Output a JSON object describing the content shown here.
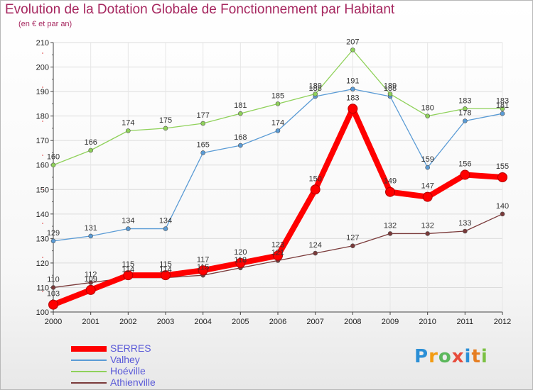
{
  "header": {
    "title": "Evolution de la Dotation Globale de Fonctionnement par Habitant",
    "subtitle": "(en € et par an)"
  },
  "brand": {
    "letters": [
      "P",
      "r",
      "o",
      "x",
      "i",
      "t",
      "i"
    ],
    "colors": [
      "#2b8fd6",
      "#f39c12",
      "#5cb85c",
      "#e74c3c",
      "#2b8fd6",
      "#e67e22",
      "#7bc043"
    ]
  },
  "chart_data": {
    "type": "line",
    "title": "Evolution de la Dotation Globale de Fonctionnement par Habitant",
    "subtitle": "(en € et par an)",
    "xlabel": "",
    "ylabel": "",
    "x": [
      "2000",
      "2001",
      "2002",
      "2003",
      "2004",
      "2005",
      "2006",
      "2007",
      "2008",
      "2009",
      "2010",
      "2011",
      "2012"
    ],
    "ylim": [
      100,
      210
    ],
    "yticks": [
      100,
      110,
      120,
      130,
      140,
      150,
      160,
      170,
      180,
      190,
      200,
      210
    ],
    "grid": true,
    "legend_position": "bottom-left",
    "series": [
      {
        "name": "SERRES",
        "color": "#ff0000",
        "emphasis": true,
        "values": [
          103,
          109,
          115,
          115,
          117,
          120,
          123,
          150,
          183,
          149,
          147,
          156,
          155
        ],
        "labels": [
          "103",
          "109",
          "115",
          "115",
          "117",
          "120",
          "123",
          "150",
          "183",
          "149",
          "147",
          "156",
          "155"
        ]
      },
      {
        "name": "Valhey",
        "color": "#5a9bd5",
        "values": [
          129,
          131,
          134,
          134,
          165,
          168,
          174,
          188,
          191,
          188,
          159,
          178,
          181
        ],
        "labels": [
          "129",
          "131",
          "134",
          "134",
          "165",
          "168",
          "174",
          "188",
          "191",
          "188",
          "159",
          "178",
          "181"
        ]
      },
      {
        "name": "Hoéville",
        "color": "#8fd15a",
        "values": [
          160,
          166,
          174,
          175,
          177,
          181,
          185,
          189,
          207,
          189,
          180,
          183,
          183
        ],
        "labels": [
          "160",
          "166",
          "174",
          "175",
          "177",
          "181",
          "185",
          "189",
          "207",
          "189",
          "180",
          "183",
          "183"
        ]
      },
      {
        "name": "Athienville",
        "color": "#7a3a3a",
        "values": [
          110,
          112,
          114,
          114,
          115,
          118,
          121,
          124,
          127,
          132,
          132,
          133,
          140
        ],
        "labels": [
          "110",
          "112",
          "114",
          "114",
          "115",
          "118",
          "121",
          "124",
          "127",
          "132",
          "132",
          "133",
          "140"
        ]
      }
    ]
  }
}
